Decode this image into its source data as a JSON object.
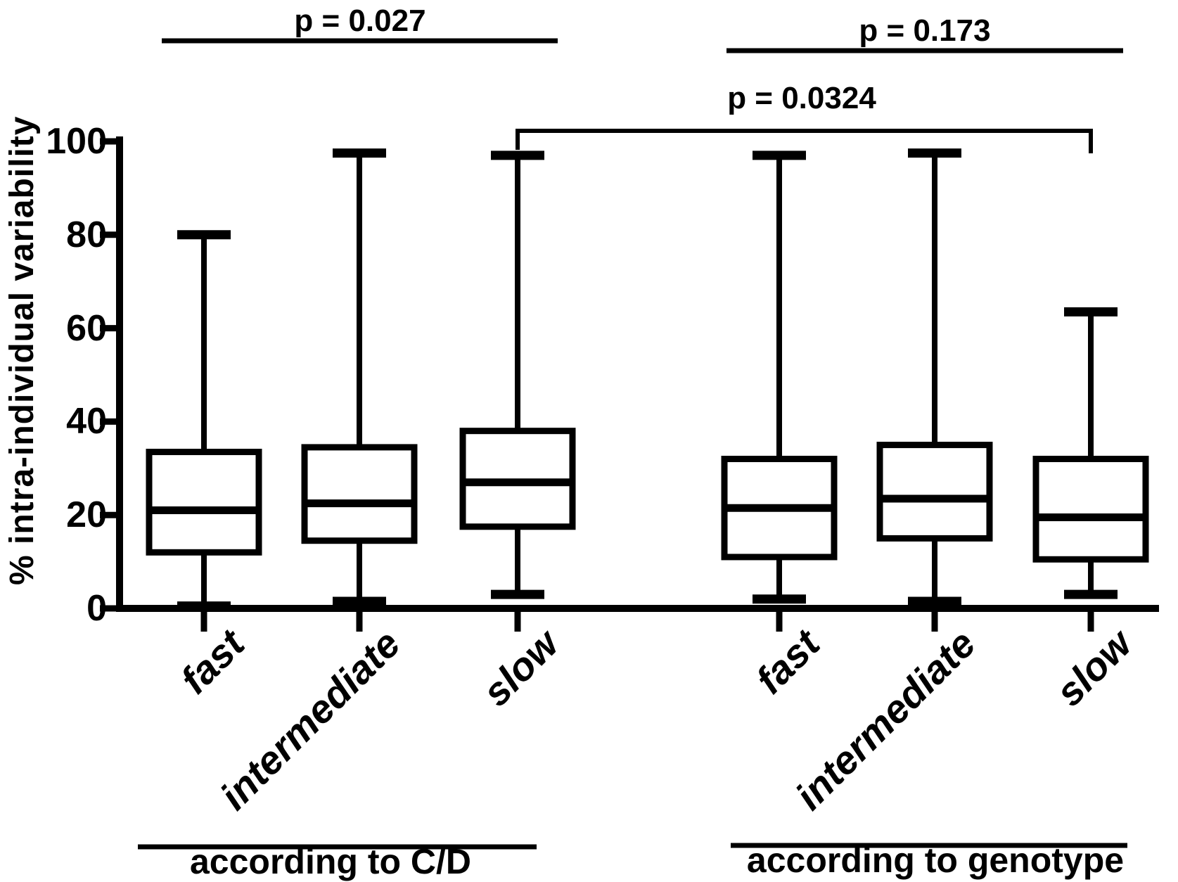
{
  "figure": {
    "background": "#ffffff",
    "ink": "#000000"
  },
  "chart_data": {
    "type": "boxplot",
    "title": "",
    "ylabel": "% intra-individual variability",
    "xlabel": "",
    "ylim": [
      0,
      100
    ],
    "yticks": [
      0,
      20,
      40,
      60,
      80,
      100
    ],
    "grid": "off",
    "legend": "none",
    "groups": [
      {
        "label": "according to C/D",
        "categories": [
          "fast",
          "intermediate",
          "slow"
        ]
      },
      {
        "label": "according to genotype",
        "categories": [
          "fast",
          "intermediate",
          "slow"
        ]
      }
    ],
    "series": [
      {
        "group": "according to C/D",
        "category": "fast",
        "min": 0.5,
        "q1": 12,
        "median": 21,
        "q3": 33.5,
        "max": 80
      },
      {
        "group": "according to C/D",
        "category": "intermediate",
        "min": 1.5,
        "q1": 14.5,
        "median": 22.5,
        "q3": 34.5,
        "max": 97.5
      },
      {
        "group": "according to C/D",
        "category": "slow",
        "min": 3,
        "q1": 17.5,
        "median": 27,
        "q3": 38,
        "max": 97
      },
      {
        "group": "according to genotype",
        "category": "fast",
        "min": 2,
        "q1": 11,
        "median": 21.5,
        "q3": 32,
        "max": 97
      },
      {
        "group": "according to genotype",
        "category": "intermediate",
        "min": 1.5,
        "q1": 15,
        "median": 23.5,
        "q3": 35,
        "max": 97.5
      },
      {
        "group": "according to genotype",
        "category": "slow",
        "min": 3,
        "q1": 10.5,
        "median": 19.5,
        "q3": 32,
        "max": 63.5
      }
    ],
    "annotations": [
      {
        "label": "p = 0.027",
        "style": "line",
        "spans": "according to C/D: fast to slow"
      },
      {
        "label": "p = 0.173",
        "style": "line",
        "spans": "according to genotype: fast to slow"
      },
      {
        "label": "p = 0.0324",
        "style": "bracket",
        "spans": "slow (C/D) to slow (genotype)"
      }
    ]
  }
}
